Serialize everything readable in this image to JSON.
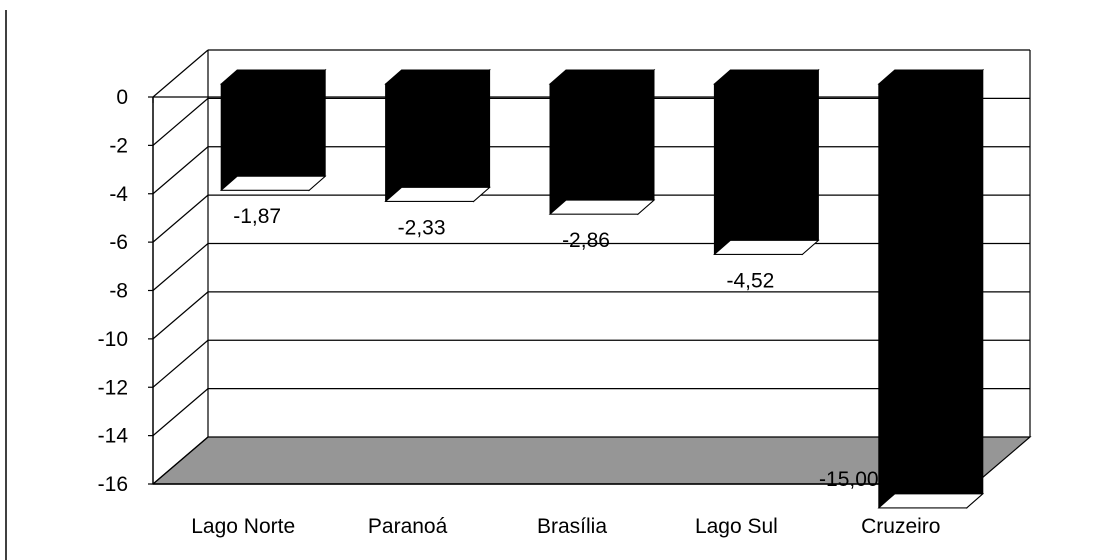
{
  "chart_data": {
    "type": "bar",
    "style": "3d-column",
    "categories": [
      "Lago Norte",
      "Paranoá",
      "Brasília",
      "Lago Sul",
      "Cruzeiro"
    ],
    "values": [
      -1.87,
      -2.33,
      -2.86,
      -4.52,
      -15.0
    ],
    "data_labels": [
      "-1,87",
      "-2,33",
      "-2,86",
      "-4,52",
      "-15,00"
    ],
    "ylim": [
      -16,
      0
    ],
    "yticks": [
      0,
      -2,
      -4,
      -6,
      -8,
      -10,
      -12,
      -14,
      -16
    ],
    "ytick_labels": [
      "0",
      "-2",
      "-4",
      "-6",
      "-8",
      "-10",
      "-12",
      "-14",
      "-16"
    ],
    "grid": true,
    "legend": "none",
    "bar_color": "#000000",
    "floor_color": "#969696",
    "grid_color": "#000000"
  }
}
